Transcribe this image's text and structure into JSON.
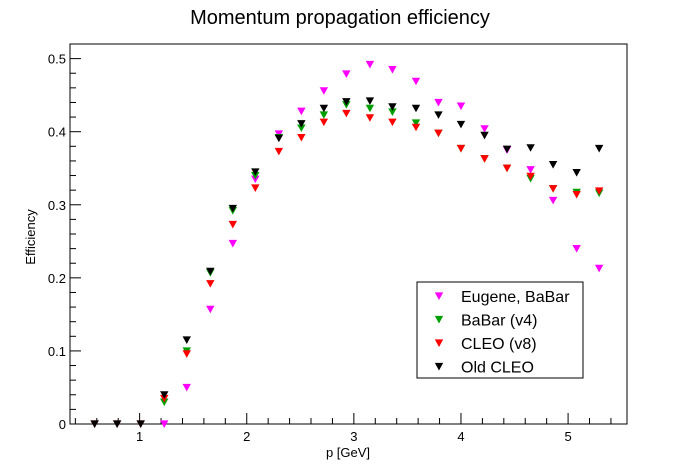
{
  "chart_data": {
    "type": "scatter",
    "title": "Momentum propagation efficiency",
    "xlabel": "p [GeV]",
    "ylabel": "Efficiency",
    "xlim": [
      0.35,
      5.55
    ],
    "ylim": [
      0,
      0.52
    ],
    "x_ticks": [
      1,
      2,
      3,
      4,
      5
    ],
    "y_ticks": [
      0,
      0.1,
      0.2,
      0.3,
      0.4,
      0.5
    ],
    "tick_labels_x": [
      "1",
      "2",
      "3",
      "4",
      "5"
    ],
    "tick_labels_y": [
      "0",
      "0.1",
      "0.2",
      "0.3",
      "0.4",
      "0.5"
    ],
    "legend_position": "bottom-right",
    "marker": "triangle-down",
    "series": [
      {
        "name": "Eugene, BaBar",
        "color": "#ff00ff",
        "x": [
          1.23,
          1.44,
          1.66,
          1.87,
          2.08,
          2.3,
          2.51,
          2.72,
          2.93,
          3.15,
          3.36,
          3.58,
          3.79,
          4.0,
          4.22,
          4.43,
          4.65,
          4.86,
          5.08,
          5.29
        ],
        "y": [
          0.0,
          0.05,
          0.157,
          0.247,
          0.335,
          0.397,
          0.428,
          0.456,
          0.479,
          0.492,
          0.485,
          0.469,
          0.44,
          0.435,
          0.404,
          0.375,
          0.348,
          0.306,
          0.24,
          0.213
        ]
      },
      {
        "name": "BaBar (v4)",
        "color": "#00a000",
        "x": [
          1.23,
          1.44,
          1.66,
          1.87,
          2.08,
          2.3,
          2.51,
          2.72,
          2.93,
          3.15,
          3.36,
          3.58,
          3.79,
          4.0,
          4.22,
          4.43,
          4.65,
          4.86,
          5.08,
          5.29
        ],
        "y": [
          0.03,
          0.1,
          0.207,
          0.292,
          0.34,
          0.392,
          0.405,
          0.423,
          0.437,
          0.432,
          0.427,
          0.412,
          0.398,
          0.377,
          0.363,
          0.35,
          0.336,
          0.322,
          0.317,
          0.316
        ]
      },
      {
        "name": "CLEO (v8)",
        "color": "#ff0000",
        "x": [
          0.58,
          0.79,
          1.01,
          1.23,
          1.44,
          1.66,
          1.87,
          2.08,
          2.3,
          2.51,
          2.72,
          2.93,
          3.15,
          3.36,
          3.58,
          3.79,
          4.0,
          4.22,
          4.43,
          4.65,
          4.86,
          5.08,
          5.29
        ],
        "y": [
          0.0,
          0.0,
          0.0,
          0.035,
          0.096,
          0.192,
          0.273,
          0.323,
          0.373,
          0.392,
          0.413,
          0.425,
          0.419,
          0.413,
          0.406,
          0.398,
          0.377,
          0.363,
          0.35,
          0.339,
          0.322,
          0.314,
          0.319
        ]
      },
      {
        "name": "Old CLEO",
        "color": "#000000",
        "x": [
          0.58,
          0.79,
          1.01,
          1.23,
          1.44,
          1.66,
          1.87,
          2.08,
          2.3,
          2.51,
          2.72,
          2.93,
          3.15,
          3.36,
          3.58,
          3.79,
          4.0,
          4.22,
          4.43,
          4.65,
          4.86,
          5.08,
          5.29
        ],
        "y": [
          0.0,
          0.0,
          0.0,
          0.04,
          0.115,
          0.209,
          0.295,
          0.345,
          0.391,
          0.411,
          0.432,
          0.441,
          0.442,
          0.434,
          0.432,
          0.423,
          0.41,
          0.395,
          0.376,
          0.378,
          0.355,
          0.344,
          0.377
        ]
      }
    ]
  }
}
